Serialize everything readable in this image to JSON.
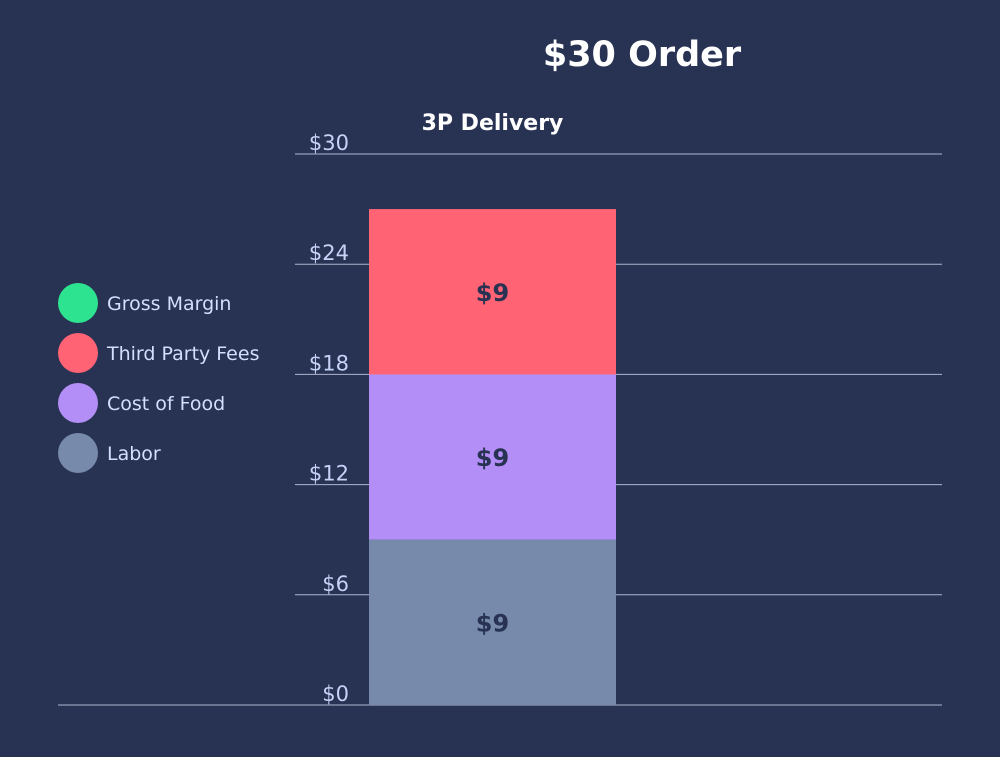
{
  "chart_data": {
    "type": "bar",
    "stacked": true,
    "title": "$30 Order",
    "categories": [
      "3P Delivery"
    ],
    "ylim": [
      0,
      30
    ],
    "yticks": [
      0,
      6,
      12,
      18,
      24,
      30
    ],
    "ytick_labels": [
      "$0",
      "$6",
      "$12",
      "$18",
      "$24",
      "$30"
    ],
    "grid": true,
    "legend_position": "left",
    "legend": [
      {
        "name": "Gross Margin",
        "color": "#2ee38f"
      },
      {
        "name": "Third Party Fees",
        "color": "#ff6374"
      },
      {
        "name": "Cost of Food",
        "color": "#b48ef7"
      },
      {
        "name": "Labor",
        "color": "#788aab"
      }
    ],
    "series": [
      {
        "name": "Labor",
        "color": "#788aab",
        "values": [
          9
        ],
        "value_labels": [
          "$9"
        ]
      },
      {
        "name": "Cost of Food",
        "color": "#b48ef7",
        "values": [
          9
        ],
        "value_labels": [
          "$9"
        ]
      },
      {
        "name": "Third Party Fees",
        "color": "#ff6374",
        "values": [
          9
        ],
        "value_labels": [
          "$9"
        ]
      }
    ]
  },
  "colors": {
    "background": "#283253",
    "text": "#ffffff",
    "tick_text": "#c6d2f7",
    "legend_text": "#d4defd",
    "grid": "#aeb6cf",
    "bar_label": "#283253"
  }
}
